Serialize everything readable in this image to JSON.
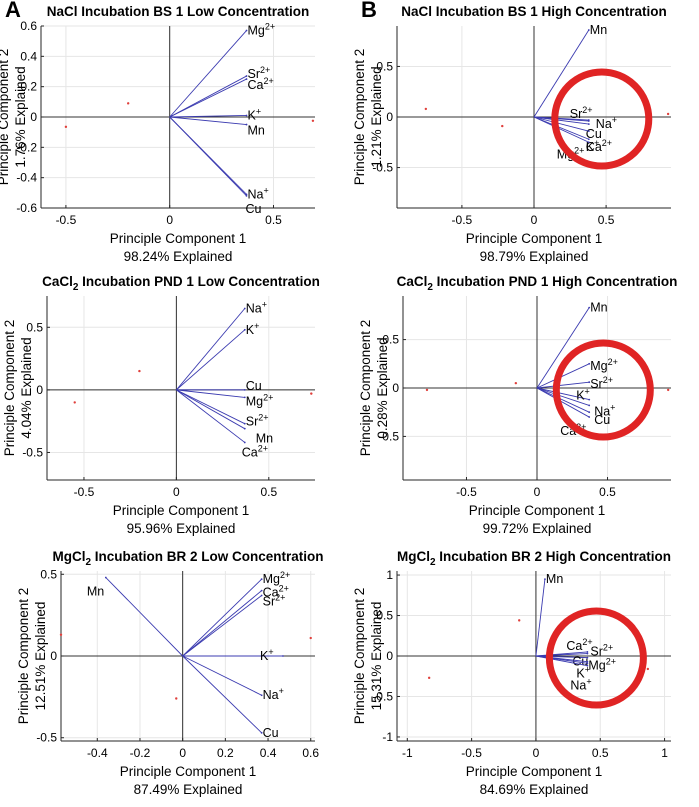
{
  "panel_letters": [
    "A",
    "B"
  ],
  "chart_data": [
    {
      "type": "scatter",
      "letter": "A",
      "title": "NaCl Incubation BS 1 Low Concentration",
      "xlabel": "Principle Component 1",
      "xexplained": "98.24% Explained",
      "ylabel": "Principle Component 2",
      "yexplained": "1.76% Explained",
      "xlim": [
        -0.62,
        0.7
      ],
      "ylim": [
        -0.6,
        0.6
      ],
      "xticks": [
        -0.5,
        0,
        0.5
      ],
      "xticklabels": [
        "-0.5",
        "0",
        "0.5"
      ],
      "yticks": [
        -0.6,
        -0.4,
        -0.2,
        0,
        0.2,
        0.4,
        0.6
      ],
      "yticklabels": [
        "-0.6",
        "-0.4",
        "-0.2",
        "0",
        "0.2",
        "0.4",
        "0.6"
      ],
      "grid": true,
      "vectors": [
        {
          "label": "Mg",
          "sup": "2+",
          "x": 0.37,
          "y": 0.57
        },
        {
          "label": "Sr",
          "sup": "2+",
          "x": 0.37,
          "y": 0.27
        },
        {
          "label": "Ca",
          "sup": "2+",
          "x": 0.37,
          "y": 0.25
        },
        {
          "label": "K",
          "sup": "+",
          "x": 0.37,
          "y": 0.01
        },
        {
          "label": "Mn",
          "sup": "",
          "x": 0.37,
          "y": -0.05
        },
        {
          "label": "Na",
          "sup": "+",
          "x": 0.37,
          "y": -0.51
        },
        {
          "label": "Cu",
          "sup": "",
          "x": 0.37,
          "y": -0.52
        }
      ],
      "label_offsets": [
        [
          0,
          0
        ],
        [
          0,
          -2
        ],
        [
          0,
          6
        ],
        [
          0,
          0
        ],
        [
          0,
          6
        ],
        [
          0,
          0
        ],
        [
          -2,
          13
        ]
      ],
      "points": [
        [
          -0.2,
          0.09
        ],
        [
          -0.5,
          -0.065
        ],
        [
          0.69,
          -0.025
        ]
      ]
    },
    {
      "type": "scatter",
      "letter": "B",
      "title": "NaCl Incubation BS 1 High Concentration",
      "xlabel": "Principle Component 1",
      "xexplained": "98.79% Explained",
      "ylabel": "Principle Component 2",
      "yexplained": "1.21% Explained",
      "xlim": [
        -0.95,
        0.95
      ],
      "ylim": [
        -0.9,
        0.9
      ],
      "xticks": [
        -0.5,
        0,
        0.5
      ],
      "xticklabels": [
        "-0.5",
        "0",
        "0.5"
      ],
      "yticks": [
        -0.5,
        0,
        0.5
      ],
      "yticklabels": [
        "-0.5",
        "0",
        "0.5"
      ],
      "grid": true,
      "vectors": [
        {
          "label": "Mn",
          "sup": "",
          "x": 0.38,
          "y": 0.86
        },
        {
          "label": "Sr",
          "sup": "2+",
          "x": 0.38,
          "y": -0.03
        },
        {
          "label": "Na",
          "sup": "+",
          "x": 0.38,
          "y": -0.04
        },
        {
          "label": "Cu",
          "sup": "",
          "x": 0.38,
          "y": -0.07
        },
        {
          "label": "Ca",
          "sup": "2+",
          "x": 0.38,
          "y": -0.14
        },
        {
          "label": "K",
          "sup": "+",
          "x": 0.38,
          "y": -0.22
        },
        {
          "label": "Mg",
          "sup": "2+",
          "x": 0.38,
          "y": -0.25
        }
      ],
      "label_offsets": [
        [
          0,
          0
        ],
        [
          -20,
          -6
        ],
        [
          6,
          3
        ],
        [
          -4,
          10
        ],
        [
          -4,
          16
        ],
        [
          -4,
          8
        ],
        [
          -33,
          12
        ]
      ],
      "points": [
        [
          -0.75,
          0.08
        ],
        [
          -0.22,
          -0.09
        ],
        [
          0.93,
          0.03
        ]
      ],
      "highlight_circle": true
    },
    {
      "type": "scatter",
      "letter": "",
      "title": "CaCl2 Incubation PND 1 Low Concentration",
      "title_parts": [
        "CaCl",
        "2",
        " Incubation PND 1 Low Concentration"
      ],
      "xlabel": "Principle Component 1",
      "xexplained": "95.96% Explained",
      "ylabel": "Principle Component 2",
      "yexplained": "4.04% Explained",
      "xlim": [
        -0.7,
        0.75
      ],
      "ylim": [
        -0.72,
        0.75
      ],
      "xticks": [
        -0.5,
        0,
        0.5
      ],
      "xticklabels": [
        "-0.5",
        "0",
        "0.5"
      ],
      "yticks": [
        -0.5,
        0,
        0.5
      ],
      "yticklabels": [
        "-0.5",
        "0",
        "0.5"
      ],
      "grid": true,
      "vectors": [
        {
          "label": "Na",
          "sup": "+",
          "x": 0.37,
          "y": 0.65
        },
        {
          "label": "K",
          "sup": "+",
          "x": 0.37,
          "y": 0.48
        },
        {
          "label": "Cu",
          "sup": "",
          "x": 0.37,
          "y": 0.0
        },
        {
          "label": "Mg",
          "sup": "2+",
          "x": 0.37,
          "y": -0.06
        },
        {
          "label": "Sr",
          "sup": "2+",
          "x": 0.37,
          "y": -0.27
        },
        {
          "label": "Mn",
          "sup": "",
          "x": 0.37,
          "y": -0.31
        },
        {
          "label": "Ca",
          "sup": "2+",
          "x": 0.37,
          "y": -0.42
        }
      ],
      "label_offsets": [
        [
          0,
          0
        ],
        [
          0,
          0
        ],
        [
          0,
          -4
        ],
        [
          0,
          4
        ],
        [
          0,
          -2
        ],
        [
          10,
          10
        ],
        [
          -4,
          10
        ]
      ],
      "points": [
        [
          -0.2,
          0.15
        ],
        [
          -0.55,
          -0.1
        ],
        [
          0.73,
          -0.03
        ]
      ]
    },
    {
      "type": "scatter",
      "letter": "",
      "title": "CaCl2 Incubation PND 1 High Concentration",
      "title_parts": [
        "CaCl",
        "2",
        " Incubation PND 1 High Concentration"
      ],
      "xlabel": "Principle Component 1",
      "xexplained": "99.72% Explained",
      "ylabel": "Principle Component 2",
      "yexplained": "0.28% Explained",
      "xlim": [
        -0.95,
        0.95
      ],
      "ylim": [
        -0.95,
        0.95
      ],
      "xticks": [
        -0.5,
        0,
        0.5
      ],
      "xticklabels": [
        "-0.5",
        "0",
        "0.5"
      ],
      "yticks": [
        -0.5,
        0,
        0.5
      ],
      "yticklabels": [
        "-0.5",
        "0",
        "0.5"
      ],
      "grid": true,
      "vectors": [
        {
          "label": "Mn",
          "sup": "",
          "x": 0.37,
          "y": 0.83
        },
        {
          "label": "Mg",
          "sup": "2+",
          "x": 0.37,
          "y": 0.25
        },
        {
          "label": "Sr",
          "sup": "2+",
          "x": 0.37,
          "y": 0.06
        },
        {
          "label": "K",
          "sup": "+",
          "x": 0.37,
          "y": -0.12
        },
        {
          "label": "Na",
          "sup": "+",
          "x": 0.37,
          "y": -0.18
        },
        {
          "label": "Cu",
          "sup": "",
          "x": 0.37,
          "y": -0.25
        },
        {
          "label": "Ca",
          "sup": "2+",
          "x": 0.37,
          "y": -0.3
        }
      ],
      "label_offsets": [
        [
          0,
          0
        ],
        [
          0,
          2
        ],
        [
          0,
          2
        ],
        [
          -14,
          -4
        ],
        [
          4,
          6
        ],
        [
          4,
          8
        ],
        [
          -30,
          14
        ]
      ],
      "points": [
        [
          -0.15,
          0.05
        ],
        [
          -0.78,
          -0.02
        ],
        [
          0.93,
          -0.02
        ]
      ],
      "highlight_circle": true
    },
    {
      "type": "scatter",
      "letter": "",
      "title": "MgCl2 Incubation BR 2 Low Concentration",
      "title_parts": [
        "MgCl",
        "2",
        " Incubation BR 2 Low Concentration"
      ],
      "xlabel": "Principle Component 1",
      "xexplained": "87.49% Explained",
      "ylabel": "Principle Component 2",
      "yexplained": "12.51% Explained",
      "xlim": [
        -0.57,
        0.62
      ],
      "ylim": [
        -0.52,
        0.52
      ],
      "xticks": [
        -0.4,
        -0.2,
        0,
        0.2,
        0.4,
        0.6
      ],
      "xticklabels": [
        "-0.4",
        "-0.2",
        "0",
        "0.2",
        "0.4",
        "0.6"
      ],
      "yticks": [
        -0.5,
        0,
        0.5
      ],
      "yticklabels": [
        "-0.5",
        "0",
        "0.5"
      ],
      "grid": true,
      "vectors": [
        {
          "label": "Mn",
          "sup": "",
          "x": -0.36,
          "y": 0.48
        },
        {
          "label": "Mg",
          "sup": "2+",
          "x": 0.37,
          "y": 0.47
        },
        {
          "label": "Ca",
          "sup": "2+",
          "x": 0.37,
          "y": 0.4
        },
        {
          "label": "Sr",
          "sup": "2+",
          "x": 0.37,
          "y": 0.37
        },
        {
          "label": "K",
          "sup": "+",
          "x": 0.47,
          "y": 0.0
        },
        {
          "label": "Na",
          "sup": "+",
          "x": 0.37,
          "y": -0.24
        },
        {
          "label": "Cu",
          "sup": "",
          "x": 0.37,
          "y": -0.47
        }
      ],
      "label_offsets": [
        [
          -20,
          14
        ],
        [
          0,
          0
        ],
        [
          0,
          2
        ],
        [
          0,
          6
        ],
        [
          -24,
          0
        ],
        [
          0,
          0
        ],
        [
          0,
          0
        ]
      ],
      "points": [
        [
          -0.57,
          0.13
        ],
        [
          -0.03,
          -0.26
        ],
        [
          0.6,
          0.11
        ]
      ]
    },
    {
      "type": "scatter",
      "letter": "",
      "title": "MgCl2 Incubation BR 2 High Concentration",
      "title_parts": [
        "MgCl",
        "2",
        " Incubation BR 2 High Concentration"
      ],
      "xlabel": "Principle Component 1",
      "xexplained": "84.69% Explained",
      "ylabel": "Principle Component 2",
      "yexplained": "15.31% Explained",
      "xlim": [
        -1.08,
        1.05
      ],
      "ylim": [
        -1.05,
        1.05
      ],
      "xticks": [
        -1,
        -0.5,
        0,
        0.5,
        1
      ],
      "xticklabels": [
        "-1",
        "-0.5",
        "0",
        "0.5",
        "1"
      ],
      "yticks": [
        -1,
        -0.5,
        0,
        0.5,
        1
      ],
      "yticklabels": [
        "-1",
        "-0.5",
        "0",
        "0.5",
        "1"
      ],
      "grid": true,
      "vectors": [
        {
          "label": "Mn",
          "sup": "",
          "x": 0.07,
          "y": 0.95
        },
        {
          "label": "Ca",
          "sup": "2+",
          "x": 0.4,
          "y": 0.05
        },
        {
          "label": "Sr",
          "sup": "2+",
          "x": 0.4,
          "y": 0.03
        },
        {
          "label": "Cu",
          "sup": "",
          "x": 0.4,
          "y": -0.02
        },
        {
          "label": "Mg",
          "sup": "2+",
          "x": 0.4,
          "y": -0.07
        },
        {
          "label": "K",
          "sup": "+",
          "x": 0.4,
          "y": -0.09
        },
        {
          "label": "Na",
          "sup": "+",
          "x": 0.4,
          "y": -0.12
        }
      ],
      "label_offsets": [
        [
          0,
          0
        ],
        [
          -22,
          -6
        ],
        [
          2,
          -2
        ],
        [
          -16,
          4
        ],
        [
          0,
          4
        ],
        [
          -12,
          10
        ],
        [
          -18,
          20
        ]
      ],
      "points": [
        [
          -0.13,
          0.44
        ],
        [
          -0.83,
          -0.27
        ],
        [
          0.87,
          -0.16
        ]
      ],
      "highlight_circle": true
    }
  ],
  "colors": {
    "vector": "#3b3bb0",
    "point": "#e0403c",
    "circle": "#e02424",
    "axis": "#262626",
    "grid": "#e6e6e6"
  }
}
